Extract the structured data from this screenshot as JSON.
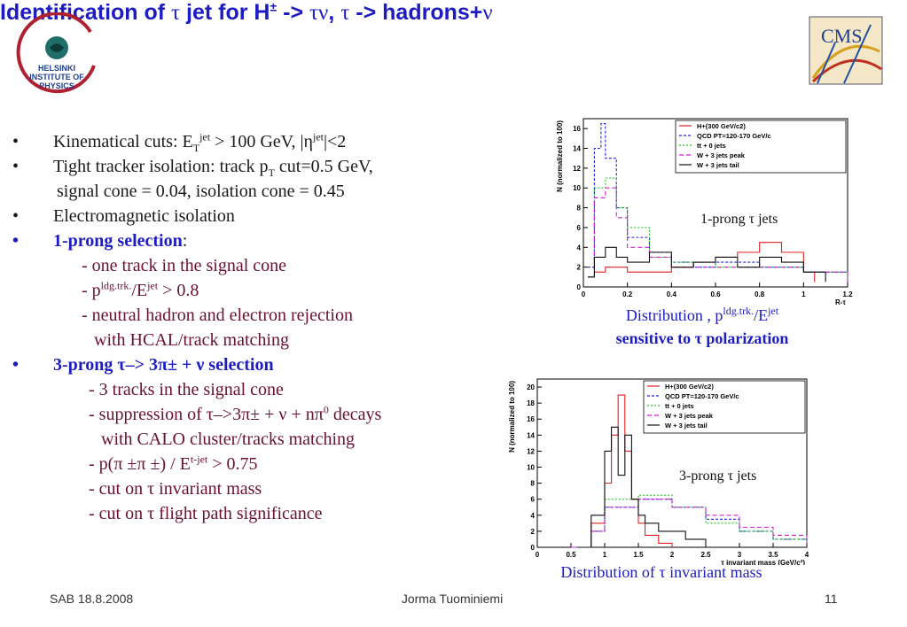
{
  "logo_left": {
    "lines": [
      "HELSINKI",
      "INSTITUTE OF",
      "PHYSICS"
    ]
  },
  "logo_right": {
    "text": "CMS"
  },
  "title": {
    "part1": "Identification of ",
    "tau1": "τ",
    "part2": " jet for H",
    "pm": "±",
    "part3": " -> ",
    "tau2": "τν",
    "part4": ", ",
    "tau3": "τ",
    "part5": " -> hadrons+",
    "nu": "ν"
  },
  "bullets": [
    {
      "bullet": "•",
      "pre": "Kinematical cuts: E",
      "sub": "T",
      "sup": "jet",
      "mid": " > 100 GeV, |η",
      "sup2": "jet",
      "post": "|<2"
    },
    {
      "bullet": "•",
      "pre": "Tight tracker isolation: track p",
      "sub": "T",
      "post": " cut=0.5 GeV,"
    },
    {
      "pre": "signal cone = 0.04, isolation cone = 0.45"
    },
    {
      "bullet": "•",
      "pre": "Electromagnetic isolation"
    },
    {
      "bullet": "•",
      "head": "1-prong selection",
      "post": ":"
    },
    {
      "pre": "- one track in the signal cone"
    },
    {
      "pre": "- p",
      "sup": "ldg.trk.",
      "mid": "/E",
      "sup2": "jet",
      "post": " > 0.8"
    },
    {
      "pre": "- neutral hadron and electron rejection"
    },
    {
      "pre": "with HCAL/track matching"
    },
    {
      "bullet": "•",
      "head": "3-prong τ–> 3π± + ν selection"
    },
    {
      "pre": "- 3 tracks in the signal cone"
    },
    {
      "pre": "- suppression of τ–>3π± + ν +  nπ",
      "sup": "0",
      "post": " decays"
    },
    {
      "pre": "with CALO cluster/tracks matching"
    },
    {
      "pre": "- p(π ±π ±) / E",
      "sup": "t-jet",
      "post": " > 0.75"
    },
    {
      "pre": "- cut on τ invariant mass"
    },
    {
      "pre": "- cut on τ flight path significance"
    }
  ],
  "chart_data": [
    {
      "type": "line",
      "xlabel": "R-τ",
      "ylabel": "N (normalized to 100)",
      "xlim": [
        0,
        1.2
      ],
      "ylim": [
        0,
        17
      ],
      "xticks": [
        "0",
        "0.2",
        "0.4",
        "0.6",
        "0.8",
        "1",
        "1.2"
      ],
      "yticks": [
        "0",
        "2",
        "4",
        "6",
        "8",
        "10",
        "12",
        "14",
        "16"
      ],
      "annotation": "1-prong τ jets",
      "legend": [
        {
          "name": "H+(300 GeV/c2)",
          "color": "#e02020"
        },
        {
          "name": "QCD PT=120-170 GeV/c",
          "color": "#2020e0"
        },
        {
          "name": "tt + 0 jets",
          "color": "#20c020"
        },
        {
          "name": "W + 3 jets peak",
          "color": "#d020d0"
        },
        {
          "name": "W + 3 jets tail",
          "color": "#111111"
        }
      ],
      "series": [
        {
          "name": "H+(300 GeV/c2)",
          "color": "#e02020",
          "dash": "",
          "x": [
            0.05,
            0.1,
            0.2,
            0.3,
            0.4,
            0.5,
            0.6,
            0.7,
            0.8,
            0.9,
            1.0,
            1.05
          ],
          "values": [
            1.5,
            2,
            1.5,
            1.5,
            2,
            2.5,
            3,
            3.5,
            4.5,
            3.5,
            1.5,
            0.5
          ]
        },
        {
          "name": "QCD PT=120-170 GeV/c",
          "color": "#2020e0",
          "dash": "3,2",
          "x": [
            0.02,
            0.05,
            0.08,
            0.1,
            0.15,
            0.2,
            0.3,
            0.4,
            0.5,
            0.6,
            0.8,
            1.0,
            1.2
          ],
          "values": [
            2,
            14,
            16.5,
            13,
            8,
            5,
            3.5,
            2.5,
            2,
            2.5,
            2,
            1.5,
            0.5
          ]
        },
        {
          "name": "tt + 0 jets",
          "color": "#20c020",
          "dash": "2,2",
          "x": [
            0.02,
            0.05,
            0.1,
            0.15,
            0.2,
            0.3,
            0.4,
            0.6,
            0.8,
            1.0,
            1.2
          ],
          "values": [
            1,
            10,
            11,
            8,
            6,
            3,
            2.5,
            2,
            2,
            1.5,
            0.5
          ]
        },
        {
          "name": "W + 3 jets peak",
          "color": "#d020d0",
          "dash": "5,3",
          "x": [
            0.02,
            0.05,
            0.1,
            0.15,
            0.2,
            0.3,
            0.4,
            0.6,
            0.8,
            1.0,
            1.2
          ],
          "values": [
            1,
            9,
            10,
            7,
            4,
            3,
            2,
            2,
            2,
            1.5,
            0.5
          ]
        },
        {
          "name": "W + 3 jets tail",
          "color": "#111111",
          "dash": "",
          "x": [
            0.02,
            0.05,
            0.1,
            0.15,
            0.2,
            0.3,
            0.4,
            0.5,
            0.6,
            0.7,
            0.8,
            0.9,
            1.0,
            1.1
          ],
          "values": [
            1,
            3,
            4,
            3,
            2.5,
            3.5,
            2,
            2.5,
            3,
            2,
            3,
            2.5,
            1.5,
            0.5
          ]
        }
      ],
      "caption_line1": {
        "pre": "Distribution , p",
        "sup": "ldg.trk.",
        "mid": "/E",
        "sup2": "jet"
      },
      "caption_line2": "sensitive to τ polarization"
    },
    {
      "type": "line",
      "xlabel": "τ invariant mass (GeV/c²)",
      "ylabel": "N (normalized to 100)",
      "xlim": [
        0,
        4
      ],
      "ylim": [
        0,
        21
      ],
      "xticks": [
        "0",
        "0.5",
        "1",
        "1.5",
        "2",
        "2.5",
        "3",
        "3.5",
        "4"
      ],
      "yticks": [
        "0",
        "2",
        "4",
        "6",
        "8",
        "10",
        "12",
        "14",
        "16",
        "18",
        "20"
      ],
      "annotation": "3-prong τ jets",
      "legend": [
        {
          "name": "H+(300 GeV/c2)",
          "color": "#e02020"
        },
        {
          "name": "QCD PT=120-170 GeV/c",
          "color": "#2020e0"
        },
        {
          "name": "tt + 0 jets",
          "color": "#20c020"
        },
        {
          "name": "W + 3 jets peak",
          "color": "#d020d0"
        },
        {
          "name": "W + 3 jets tail",
          "color": "#111111"
        }
      ],
      "series": [
        {
          "name": "H+(300 GeV/c2)",
          "color": "#e02020",
          "dash": "",
          "x": [
            0.6,
            0.8,
            1.0,
            1.1,
            1.2,
            1.3,
            1.4,
            1.5,
            1.6,
            1.8,
            2.0
          ],
          "values": [
            0,
            3,
            8,
            14,
            19,
            12,
            6,
            3,
            1.5,
            0.5,
            0
          ]
        },
        {
          "name": "QCD PT=120-170 GeV/c",
          "color": "#2020e0",
          "dash": "3,2",
          "x": [
            0.5,
            0.8,
            1.0,
            1.5,
            2.0,
            2.5,
            3.0,
            3.5,
            4.0
          ],
          "values": [
            0,
            2,
            5,
            6,
            5,
            3.5,
            2,
            1,
            0.5
          ]
        },
        {
          "name": "tt + 0 jets",
          "color": "#20c020",
          "dash": "2,2",
          "x": [
            0.5,
            0.8,
            1.0,
            1.5,
            2.0,
            2.5,
            3.0,
            3.5,
            4.0
          ],
          "values": [
            0,
            2,
            6,
            6.5,
            5,
            3,
            2,
            1,
            0.5
          ]
        },
        {
          "name": "W + 3 jets peak",
          "color": "#d020d0",
          "dash": "5,3",
          "x": [
            0.5,
            0.8,
            1.0,
            1.5,
            2.0,
            2.5,
            3.0,
            3.5,
            4.0
          ],
          "values": [
            0,
            2,
            5,
            6,
            5,
            4,
            2.5,
            1.5,
            0.5
          ]
        },
        {
          "name": "W + 3 jets tail",
          "color": "#111111",
          "dash": "",
          "x": [
            0.6,
            0.8,
            1.0,
            1.1,
            1.2,
            1.3,
            1.4,
            1.5,
            1.6,
            1.8,
            2.0,
            2.2,
            2.5
          ],
          "values": [
            0,
            4,
            12,
            15,
            9,
            14,
            6,
            4,
            3,
            2,
            2,
            1,
            0
          ]
        }
      ],
      "caption_line1": {
        "pre": "Distribution of τ invariant mass"
      }
    }
  ],
  "footer": {
    "left": "SAB 18.8.2008",
    "center": "Jorma Tuominiemi",
    "right": "11"
  }
}
